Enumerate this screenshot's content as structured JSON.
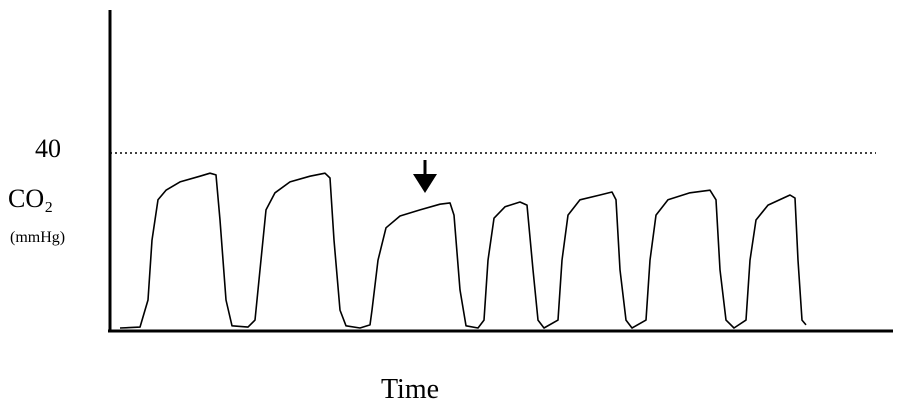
{
  "chart_data": {
    "type": "line",
    "y_label": "CO₂",
    "y_unit_label": "(mmHg)",
    "x_label": "Time",
    "xlim": [
      0,
      783
    ],
    "ylim": [
      0,
      72.7
    ],
    "yticks": [
      40
    ],
    "grid": "dotted",
    "series": [
      {
        "color": "#000000",
        "x": [
          10,
          30,
          38,
          42,
          48,
          56,
          70,
          90,
          100,
          106,
          110,
          116,
          122,
          138,
          145,
          150,
          156,
          165,
          180,
          200,
          215,
          220,
          224,
          230,
          236,
          250,
          260,
          262,
          268,
          276,
          290,
          310,
          330,
          340,
          344,
          350,
          356,
          368,
          374,
          378,
          384,
          395,
          410,
          417,
          423,
          428,
          434,
          448,
          452,
          458,
          470,
          490,
          502,
          506,
          510,
          516,
          522,
          536,
          540,
          546,
          558,
          580,
          600,
          606,
          610,
          616,
          624,
          636,
          640,
          646,
          658,
          680,
          685,
          688,
          692,
          696
        ],
        "values": [
          0,
          0.2,
          6.4,
          20.1,
          29.3,
          31.5,
          33.4,
          34.7,
          35.4,
          35,
          24.7,
          6.4,
          0.5,
          0.2,
          1.8,
          13.3,
          27,
          30.9,
          33.4,
          34.7,
          35.4,
          34.3,
          20.1,
          4.1,
          0.5,
          0,
          0.7,
          4.1,
          15.5,
          22.9,
          25.6,
          27,
          28.3,
          28.6,
          25.8,
          8.7,
          0.5,
          0,
          1.8,
          15.5,
          25.1,
          27.7,
          28.8,
          28.1,
          13.3,
          1.8,
          0,
          1.8,
          15.5,
          25.8,
          29.3,
          30.4,
          31.1,
          29.3,
          13.3,
          1.8,
          0,
          1.8,
          15.5,
          25.8,
          29.3,
          30.9,
          31.5,
          29.3,
          13.3,
          1.8,
          0,
          1.8,
          15.5,
          24.7,
          28.1,
          30.4,
          29.7,
          15.5,
          1.8,
          0.7
        ]
      }
    ]
  }
}
